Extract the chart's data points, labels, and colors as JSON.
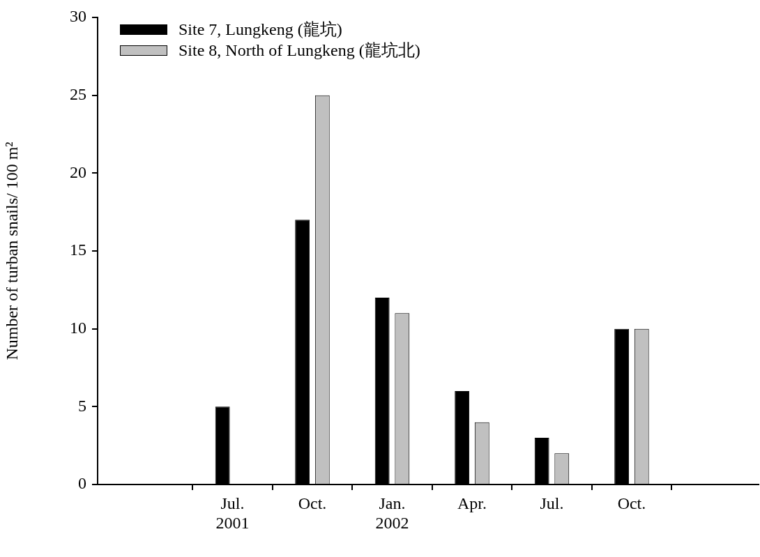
{
  "chart_data": {
    "type": "bar",
    "ylabel": "Number of turban snails/ 100 m²",
    "categories": [
      "Jul.\n2001",
      "Oct.",
      "Jan.\n2002",
      "Apr.",
      "Jul.",
      "Oct."
    ],
    "series": [
      {
        "name": "Site 7, Lungkeng (龍坑)",
        "color": "#000000",
        "values": [
          5,
          17,
          12,
          6,
          3,
          10
        ]
      },
      {
        "name": "Site 8, North of Lungkeng (龍坑北)",
        "color": "#c0c0c0",
        "values": [
          null,
          25,
          11,
          4,
          2,
          10
        ]
      }
    ],
    "ylim": [
      0,
      30
    ],
    "yticks": [
      0,
      5,
      10,
      15,
      20,
      25,
      30
    ],
    "grid": false,
    "legend": "top left"
  }
}
